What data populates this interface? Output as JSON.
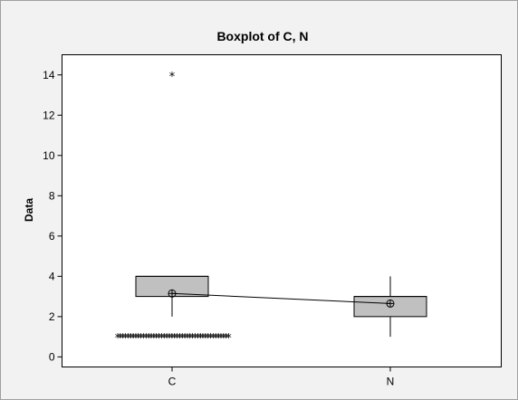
{
  "chart_data": {
    "type": "boxplot",
    "title": "Boxplot of C, N",
    "xlabel": "",
    "ylabel": "Data",
    "ylim": [
      -0.5,
      15
    ],
    "yticks": [
      0,
      2,
      4,
      6,
      8,
      10,
      12,
      14
    ],
    "categories": [
      "C",
      "N"
    ],
    "box_color": "#c0c0c0",
    "series": [
      {
        "name": "C",
        "min": 2,
        "q1": 3,
        "median": 4,
        "q3": 4,
        "max": 4,
        "mean": 3.15,
        "outliers": [
          1,
          14
        ]
      },
      {
        "name": "N",
        "min": 1,
        "q1": 2,
        "median": 3,
        "q3": 3,
        "max": 4,
        "mean": 2.65,
        "outliers": []
      }
    ],
    "mean_connect_line": true,
    "grid": false
  }
}
